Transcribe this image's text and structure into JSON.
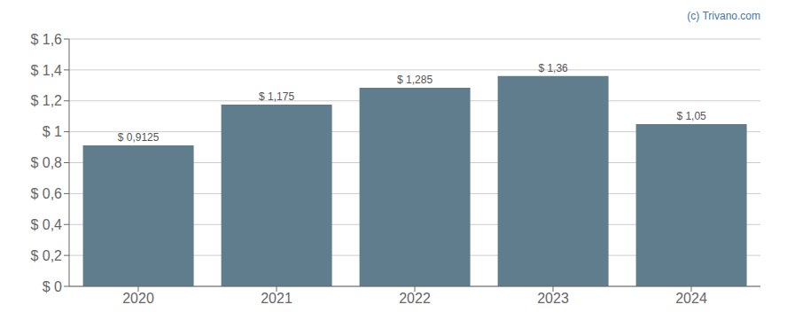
{
  "chart_data": {
    "type": "bar",
    "categories": [
      "2020",
      "2021",
      "2022",
      "2023",
      "2024"
    ],
    "values": [
      0.9125,
      1.175,
      1.285,
      1.36,
      1.05
    ],
    "value_labels": [
      "$ 0,9125",
      "$ 1,175",
      "$ 1,285",
      "$ 1,36",
      "$ 1,05"
    ],
    "data_labels": true,
    "color": "#607d8e",
    "ylim": [
      0,
      1.6
    ],
    "yticks": [
      {
        "value": 0,
        "label": "$ 0"
      },
      {
        "value": 0.2,
        "label": "$ 0,2"
      },
      {
        "value": 0.4,
        "label": "$ 0,4"
      },
      {
        "value": 0.6,
        "label": "$ 0,6"
      },
      {
        "value": 0.8,
        "label": "$ 0,8"
      },
      {
        "value": 1.0,
        "label": "$ 1"
      },
      {
        "value": 1.2,
        "label": "$ 1,2"
      },
      {
        "value": 1.4,
        "label": "$ 1,4"
      },
      {
        "value": 1.6,
        "label": "$ 1,6"
      }
    ],
    "grid": true,
    "annotations": [
      "(c) Trivano.com"
    ]
  }
}
